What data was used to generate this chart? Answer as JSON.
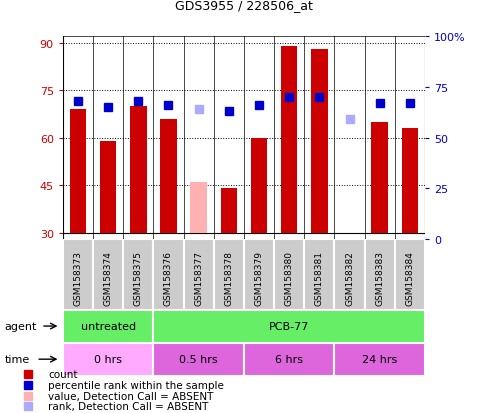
{
  "title": "GDS3955 / 228506_at",
  "samples": [
    "GSM158373",
    "GSM158374",
    "GSM158375",
    "GSM158376",
    "GSM158377",
    "GSM158378",
    "GSM158379",
    "GSM158380",
    "GSM158381",
    "GSM158382",
    "GSM158383",
    "GSM158384"
  ],
  "count_values": [
    69,
    59,
    70,
    66,
    null,
    44,
    60,
    89,
    88,
    null,
    65,
    63
  ],
  "count_absent": [
    null,
    null,
    null,
    null,
    46,
    null,
    null,
    null,
    null,
    null,
    null,
    null
  ],
  "rank_values": [
    68,
    65,
    68,
    66,
    null,
    63,
    66,
    70,
    70,
    null,
    67,
    67
  ],
  "rank_absent": [
    null,
    null,
    null,
    null,
    64,
    null,
    null,
    null,
    null,
    59,
    null,
    null
  ],
  "ylim_left": [
    28,
    92
  ],
  "ylim_right": [
    0,
    100
  ],
  "yticks_left": [
    30,
    45,
    60,
    75,
    90
  ],
  "yticks_right": [
    0,
    25,
    50,
    75,
    100
  ],
  "ytick_labels_right": [
    "0",
    "25",
    "50",
    "75",
    "100%"
  ],
  "left_color": "#cc0000",
  "right_color": "#0000cc",
  "bar_color_present": "#cc0000",
  "bar_color_absent": "#ffb0b0",
  "rank_color_present": "#0000cc",
  "rank_color_absent": "#aaaaff",
  "agent_groups": [
    {
      "label": "untreated",
      "start": 0,
      "end": 3,
      "color": "#66ee66"
    },
    {
      "label": "PCB-77",
      "start": 3,
      "end": 12,
      "color": "#66ee66"
    }
  ],
  "time_groups": [
    {
      "label": "0 hrs",
      "start": 0,
      "end": 3,
      "color": "#ffaaff"
    },
    {
      "label": "0.5 hrs",
      "start": 3,
      "end": 6,
      "color": "#dd66dd"
    },
    {
      "label": "6 hrs",
      "start": 6,
      "end": 9,
      "color": "#dd66dd"
    },
    {
      "label": "24 hrs",
      "start": 9,
      "end": 12,
      "color": "#dd66dd"
    }
  ],
  "legend_items": [
    {
      "label": "count",
      "color": "#cc0000"
    },
    {
      "label": "percentile rank within the sample",
      "color": "#0000cc"
    },
    {
      "label": "value, Detection Call = ABSENT",
      "color": "#ffb0b0"
    },
    {
      "label": "rank, Detection Call = ABSENT",
      "color": "#aaaaff"
    }
  ],
  "bar_width": 0.55,
  "rank_marker_size": 6,
  "base_value": 30,
  "sample_box_color": "#cccccc"
}
